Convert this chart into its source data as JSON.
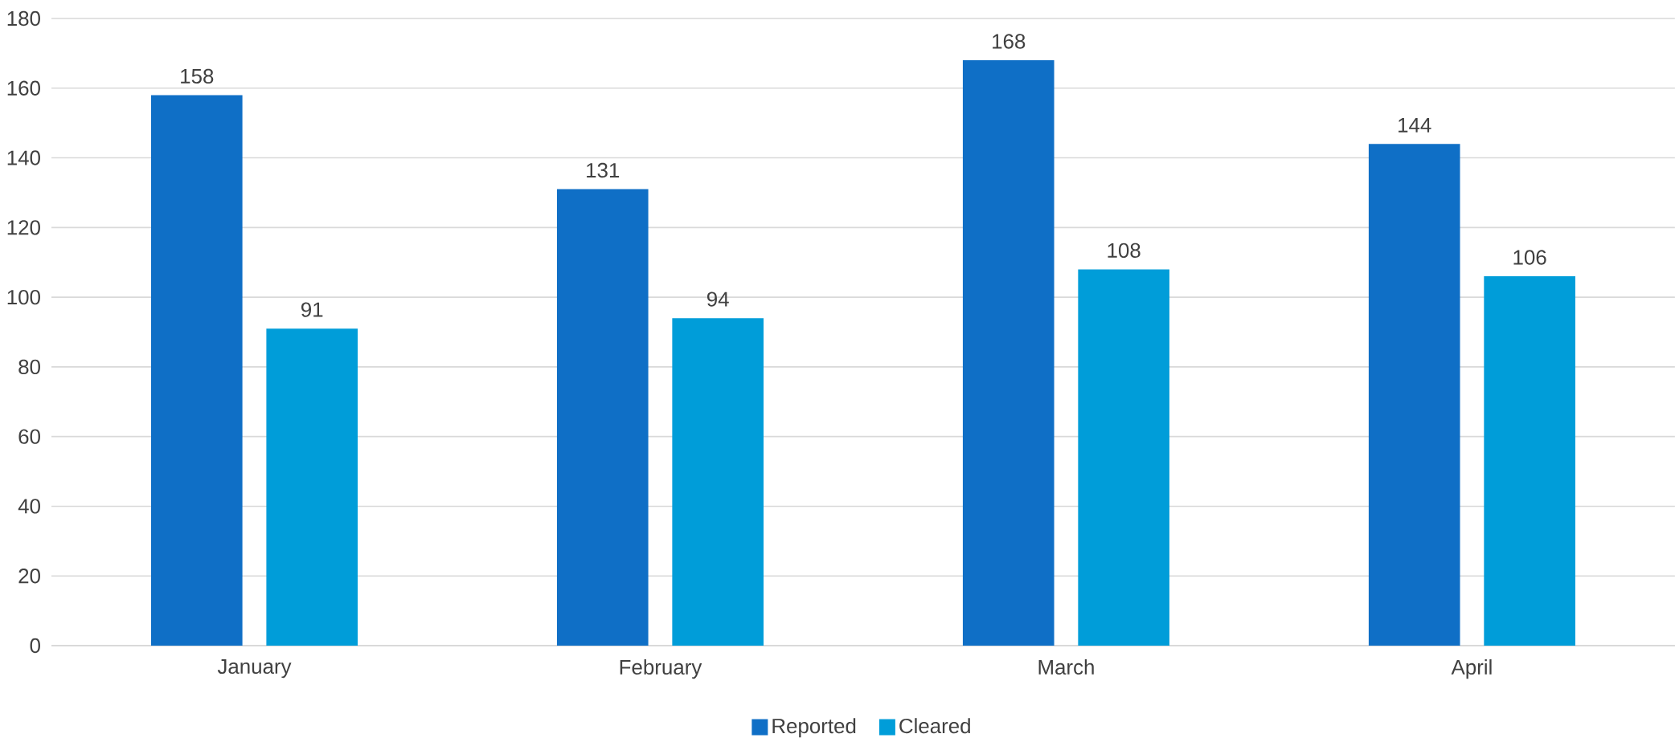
{
  "chart_data": {
    "type": "bar",
    "categories": [
      "January",
      "February",
      "March",
      "April"
    ],
    "series": [
      {
        "name": "Reported",
        "color": "#0f6fc6",
        "values": [
          158,
          131,
          168,
          144
        ]
      },
      {
        "name": "Cleared",
        "color": "#009dd9",
        "values": [
          91,
          94,
          108,
          106
        ]
      }
    ],
    "ylim": [
      0,
      180
    ],
    "yticks": [
      0,
      20,
      40,
      60,
      80,
      100,
      120,
      140,
      160,
      180
    ],
    "grid": "y",
    "legend": "bottom",
    "data_labels": true
  }
}
